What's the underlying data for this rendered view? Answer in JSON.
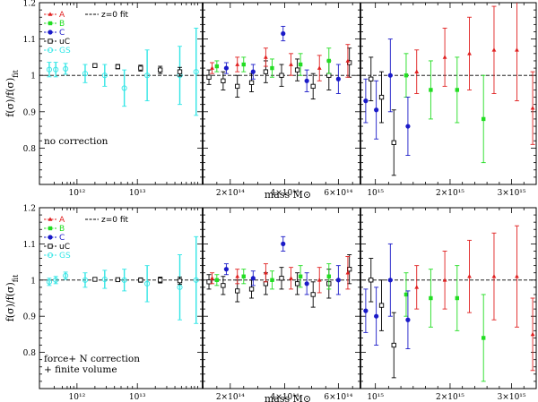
{
  "colors": {
    "A": "#e02020",
    "B": "#22dd22",
    "C": "#1a1ac8",
    "uC": "#000000",
    "GS": "#33e6e6",
    "fit": "#000000"
  },
  "chart_data": [
    {
      "type": "scatter",
      "panel": "top",
      "title": "",
      "ylabel": "f(σ)/f(σ)_fit",
      "xlabel": "mass M⊙",
      "ylim": [
        0.7,
        1.2
      ],
      "yticks": [
        0.8,
        0.9,
        1,
        1.1,
        1.2
      ],
      "reference_line": {
        "y": 1.0,
        "label": "z=0 fit"
      },
      "annotation": "no correction",
      "legend": [
        "A",
        "B",
        "C",
        "uC",
        "GS"
      ],
      "legend_labels": {
        "A": "A",
        "B": "B",
        "C": "C",
        "uC": "uC",
        "GS": "GS"
      },
      "series": [
        {
          "name": "GS",
          "points": [
            {
              "sub": 0,
              "x": 0.06,
              "y": 1.016,
              "err": 0.02
            },
            {
              "sub": 0,
              "x": 0.1,
              "y": 1.016,
              "err": 0.02
            },
            {
              "sub": 0,
              "x": 0.16,
              "y": 1.018,
              "err": 0.015
            },
            {
              "sub": 0,
              "x": 0.28,
              "y": 1.005,
              "err": 0.025
            },
            {
              "sub": 0,
              "x": 0.4,
              "y": 1.0,
              "err": 0.03
            },
            {
              "sub": 0,
              "x": 0.52,
              "y": 0.965,
              "err": 0.05
            },
            {
              "sub": 0,
              "x": 0.66,
              "y": 1.0,
              "err": 0.07
            },
            {
              "sub": 0,
              "x": 0.86,
              "y": 1.0,
              "err": 0.08
            },
            {
              "sub": 0,
              "x": 0.96,
              "y": 1.01,
              "err": 0.12
            }
          ]
        },
        {
          "name": "uC",
          "points": [
            {
              "sub": 0,
              "x": 0.34,
              "y": 1.027,
              "err": 0.005
            },
            {
              "sub": 0,
              "x": 0.48,
              "y": 1.024,
              "err": 0.006
            },
            {
              "sub": 0,
              "x": 0.62,
              "y": 1.02,
              "err": 0.008
            },
            {
              "sub": 0,
              "x": 0.74,
              "y": 1.015,
              "err": 0.01
            },
            {
              "sub": 0,
              "x": 0.86,
              "y": 1.01,
              "err": 0.012
            },
            {
              "sub": 1,
              "x": 0.04,
              "y": 0.995,
              "err": 0.02
            },
            {
              "sub": 1,
              "x": 0.13,
              "y": 0.985,
              "err": 0.025
            },
            {
              "sub": 1,
              "x": 0.22,
              "y": 0.97,
              "err": 0.03
            },
            {
              "sub": 1,
              "x": 0.31,
              "y": 0.98,
              "err": 0.025
            },
            {
              "sub": 1,
              "x": 0.4,
              "y": 1.01,
              "err": 0.03
            },
            {
              "sub": 1,
              "x": 0.5,
              "y": 1.0,
              "err": 0.03
            },
            {
              "sub": 1,
              "x": 0.6,
              "y": 1.015,
              "err": 0.03
            },
            {
              "sub": 1,
              "x": 0.7,
              "y": 0.97,
              "err": 0.035
            },
            {
              "sub": 1,
              "x": 0.8,
              "y": 1.0,
              "err": 0.04
            },
            {
              "sub": 1,
              "x": 0.93,
              "y": 1.035,
              "err": 0.04
            },
            {
              "sub": 2,
              "x": 0.06,
              "y": 0.99,
              "err": 0.06
            },
            {
              "sub": 2,
              "x": 0.12,
              "y": 0.94,
              "err": 0.07
            },
            {
              "sub": 2,
              "x": 0.19,
              "y": 0.815,
              "err": 0.09
            }
          ]
        },
        {
          "name": "A",
          "points": [
            {
              "sub": 1,
              "x": 0.06,
              "y": 1.02,
              "err": 0.015
            },
            {
              "sub": 1,
              "x": 0.22,
              "y": 1.03,
              "err": 0.02
            },
            {
              "sub": 1,
              "x": 0.4,
              "y": 1.05,
              "err": 0.025
            },
            {
              "sub": 1,
              "x": 0.56,
              "y": 1.03,
              "err": 0.03
            },
            {
              "sub": 1,
              "x": 0.74,
              "y": 1.02,
              "err": 0.035
            },
            {
              "sub": 1,
              "x": 0.92,
              "y": 1.04,
              "err": 0.045
            },
            {
              "sub": 2,
              "x": 0.32,
              "y": 1.01,
              "err": 0.06
            },
            {
              "sub": 2,
              "x": 0.48,
              "y": 1.05,
              "err": 0.08
            },
            {
              "sub": 2,
              "x": 0.62,
              "y": 1.06,
              "err": 0.1
            },
            {
              "sub": 2,
              "x": 0.76,
              "y": 1.07,
              "err": 0.12
            },
            {
              "sub": 2,
              "x": 0.89,
              "y": 1.07,
              "err": 0.14
            },
            {
              "sub": 2,
              "x": 0.98,
              "y": 0.91,
              "err": 0.1
            }
          ]
        },
        {
          "name": "B",
          "points": [
            {
              "sub": 1,
              "x": 0.09,
              "y": 1.025,
              "err": 0.015
            },
            {
              "sub": 1,
              "x": 0.26,
              "y": 1.03,
              "err": 0.02
            },
            {
              "sub": 1,
              "x": 0.44,
              "y": 1.02,
              "err": 0.025
            },
            {
              "sub": 1,
              "x": 0.62,
              "y": 1.03,
              "err": 0.03
            },
            {
              "sub": 1,
              "x": 0.8,
              "y": 1.04,
              "err": 0.035
            },
            {
              "sub": 2,
              "x": 0.26,
              "y": 1.0,
              "err": 0.06
            },
            {
              "sub": 2,
              "x": 0.4,
              "y": 0.96,
              "err": 0.08
            },
            {
              "sub": 2,
              "x": 0.55,
              "y": 0.96,
              "err": 0.09
            },
            {
              "sub": 2,
              "x": 0.7,
              "y": 0.88,
              "err": 0.12
            }
          ]
        },
        {
          "name": "C",
          "points": [
            {
              "sub": 1,
              "x": 0.15,
              "y": 1.02,
              "err": 0.015
            },
            {
              "sub": 1,
              "x": 0.32,
              "y": 1.01,
              "err": 0.02
            },
            {
              "sub": 1,
              "x": 0.51,
              "y": 1.115,
              "err": 0.02
            },
            {
              "sub": 1,
              "x": 0.66,
              "y": 0.985,
              "err": 0.03
            },
            {
              "sub": 1,
              "x": 0.86,
              "y": 0.99,
              "err": 0.04
            },
            {
              "sub": 2,
              "x": 0.03,
              "y": 0.93,
              "err": 0.06
            },
            {
              "sub": 2,
              "x": 0.09,
              "y": 0.905,
              "err": 0.08
            },
            {
              "sub": 2,
              "x": 0.17,
              "y": 1.0,
              "err": 0.1
            },
            {
              "sub": 2,
              "x": 0.27,
              "y": 0.86,
              "err": 0.08
            }
          ]
        }
      ]
    },
    {
      "type": "scatter",
      "panel": "bottom",
      "title": "",
      "ylabel": "f(σ)/f(σ)_fit",
      "xlabel": "mass M⊙",
      "ylim": [
        0.7,
        1.2
      ],
      "yticks": [
        0.8,
        0.9,
        1,
        1.1,
        1.2
      ],
      "reference_line": {
        "y": 1.0,
        "label": "z=0 fit"
      },
      "annotation": "force+ N correction + finite volume",
      "annotation_lines": [
        "force+ N correction",
        "+ finite volume"
      ],
      "legend": [
        "A",
        "B",
        "C",
        "uC",
        "GS"
      ],
      "legend_labels": {
        "A": "A",
        "B": "B",
        "C": "C",
        "uC": "uC",
        "GS": "GS"
      },
      "series": [
        {
          "name": "GS",
          "points": [
            {
              "sub": 0,
              "x": 0.06,
              "y": 0.995,
              "err": 0.01
            },
            {
              "sub": 0,
              "x": 0.1,
              "y": 1.0,
              "err": 0.01
            },
            {
              "sub": 0,
              "x": 0.16,
              "y": 1.012,
              "err": 0.01
            },
            {
              "sub": 0,
              "x": 0.28,
              "y": 1.0,
              "err": 0.02
            },
            {
              "sub": 0,
              "x": 0.4,
              "y": 1.002,
              "err": 0.025
            },
            {
              "sub": 0,
              "x": 0.52,
              "y": 1.0,
              "err": 0.03
            },
            {
              "sub": 0,
              "x": 0.66,
              "y": 0.99,
              "err": 0.05
            },
            {
              "sub": 0,
              "x": 0.86,
              "y": 0.98,
              "err": 0.09
            },
            {
              "sub": 0,
              "x": 0.96,
              "y": 1.0,
              "err": 0.12
            }
          ]
        },
        {
          "name": "uC",
          "points": [
            {
              "sub": 0,
              "x": 0.34,
              "y": 1.002,
              "err": 0.004
            },
            {
              "sub": 0,
              "x": 0.48,
              "y": 1.001,
              "err": 0.005
            },
            {
              "sub": 0,
              "x": 0.62,
              "y": 1.0,
              "err": 0.006
            },
            {
              "sub": 0,
              "x": 0.74,
              "y": 1.0,
              "err": 0.008
            },
            {
              "sub": 0,
              "x": 0.86,
              "y": 0.998,
              "err": 0.01
            },
            {
              "sub": 1,
              "x": 0.04,
              "y": 0.995,
              "err": 0.02
            },
            {
              "sub": 1,
              "x": 0.13,
              "y": 0.985,
              "err": 0.025
            },
            {
              "sub": 1,
              "x": 0.22,
              "y": 0.97,
              "err": 0.03
            },
            {
              "sub": 1,
              "x": 0.31,
              "y": 0.975,
              "err": 0.025
            },
            {
              "sub": 1,
              "x": 0.4,
              "y": 0.99,
              "err": 0.03
            },
            {
              "sub": 1,
              "x": 0.5,
              "y": 1.005,
              "err": 0.03
            },
            {
              "sub": 1,
              "x": 0.6,
              "y": 0.99,
              "err": 0.03
            },
            {
              "sub": 1,
              "x": 0.7,
              "y": 0.96,
              "err": 0.035
            },
            {
              "sub": 1,
              "x": 0.8,
              "y": 0.99,
              "err": 0.04
            },
            {
              "sub": 1,
              "x": 0.93,
              "y": 1.03,
              "err": 0.04
            },
            {
              "sub": 2,
              "x": 0.06,
              "y": 1.0,
              "err": 0.06
            },
            {
              "sub": 2,
              "x": 0.12,
              "y": 0.93,
              "err": 0.07
            },
            {
              "sub": 2,
              "x": 0.19,
              "y": 0.82,
              "err": 0.09
            }
          ]
        },
        {
          "name": "A",
          "points": [
            {
              "sub": 1,
              "x": 0.06,
              "y": 1.005,
              "err": 0.015
            },
            {
              "sub": 1,
              "x": 0.22,
              "y": 1.01,
              "err": 0.02
            },
            {
              "sub": 1,
              "x": 0.4,
              "y": 1.02,
              "err": 0.025
            },
            {
              "sub": 1,
              "x": 0.56,
              "y": 1.005,
              "err": 0.03
            },
            {
              "sub": 1,
              "x": 0.74,
              "y": 1.0,
              "err": 0.035
            },
            {
              "sub": 1,
              "x": 0.92,
              "y": 1.02,
              "err": 0.045
            },
            {
              "sub": 2,
              "x": 0.32,
              "y": 0.98,
              "err": 0.06
            },
            {
              "sub": 2,
              "x": 0.48,
              "y": 1.0,
              "err": 0.08
            },
            {
              "sub": 2,
              "x": 0.62,
              "y": 1.01,
              "err": 0.1
            },
            {
              "sub": 2,
              "x": 0.76,
              "y": 1.01,
              "err": 0.12
            },
            {
              "sub": 2,
              "x": 0.89,
              "y": 1.01,
              "err": 0.14
            },
            {
              "sub": 2,
              "x": 0.98,
              "y": 0.85,
              "err": 0.1
            }
          ]
        },
        {
          "name": "B",
          "points": [
            {
              "sub": 1,
              "x": 0.09,
              "y": 1.0,
              "err": 0.015
            },
            {
              "sub": 1,
              "x": 0.26,
              "y": 1.01,
              "err": 0.02
            },
            {
              "sub": 1,
              "x": 0.44,
              "y": 1.0,
              "err": 0.025
            },
            {
              "sub": 1,
              "x": 0.62,
              "y": 1.01,
              "err": 0.03
            },
            {
              "sub": 1,
              "x": 0.8,
              "y": 1.01,
              "err": 0.035
            },
            {
              "sub": 2,
              "x": 0.26,
              "y": 0.96,
              "err": 0.06
            },
            {
              "sub": 2,
              "x": 0.4,
              "y": 0.95,
              "err": 0.08
            },
            {
              "sub": 2,
              "x": 0.55,
              "y": 0.95,
              "err": 0.09
            },
            {
              "sub": 2,
              "x": 0.7,
              "y": 0.84,
              "err": 0.12
            }
          ]
        },
        {
          "name": "C",
          "points": [
            {
              "sub": 1,
              "x": 0.15,
              "y": 1.03,
              "err": 0.015
            },
            {
              "sub": 1,
              "x": 0.32,
              "y": 1.005,
              "err": 0.02
            },
            {
              "sub": 1,
              "x": 0.51,
              "y": 1.1,
              "err": 0.02
            },
            {
              "sub": 1,
              "x": 0.66,
              "y": 0.99,
              "err": 0.03
            },
            {
              "sub": 1,
              "x": 0.86,
              "y": 1.0,
              "err": 0.04
            },
            {
              "sub": 2,
              "x": 0.03,
              "y": 0.915,
              "err": 0.06
            },
            {
              "sub": 2,
              "x": 0.09,
              "y": 0.9,
              "err": 0.08
            },
            {
              "sub": 2,
              "x": 0.17,
              "y": 1.0,
              "err": 0.1
            },
            {
              "sub": 2,
              "x": 0.27,
              "y": 0.89,
              "err": 0.08
            }
          ]
        }
      ]
    }
  ],
  "x_axes": {
    "subpanel_1": {
      "scale": "log",
      "major_ticks": [
        "10¹²",
        "10¹³"
      ],
      "range_Msun": [
        "6×10¹¹",
        "1.5×10¹⁴"
      ]
    },
    "subpanel_2": {
      "scale": "linear",
      "major_ticks": [
        "2×10¹⁴",
        "4×10¹⁴",
        "6×10¹⁴"
      ],
      "range_Msun": [
        "1.5×10¹⁴",
        "8×10¹⁴"
      ]
    },
    "subpanel_3": {
      "scale": "linear",
      "major_ticks": [
        "10¹⁵",
        "2×10¹⁵",
        "3×10¹⁵"
      ],
      "range_Msun": [
        "8×10¹⁴",
        "3.6×10¹⁵"
      ]
    }
  }
}
